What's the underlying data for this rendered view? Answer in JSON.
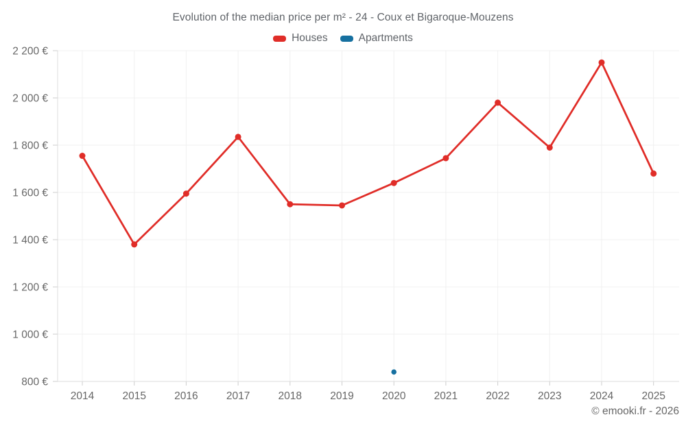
{
  "credit": "© emooki.fr - 2026",
  "legend": [
    {
      "label": "Houses",
      "color": "#e02d28"
    },
    {
      "label": "Apartments",
      "color": "#1670a0"
    }
  ],
  "chart_data": {
    "type": "line",
    "title": "Evolution of the median price per m² - 24 - Coux et Bigaroque-Mouzens",
    "categories": [
      "2014",
      "2015",
      "2016",
      "2017",
      "2018",
      "2019",
      "2020",
      "2021",
      "2022",
      "2023",
      "2024",
      "2025"
    ],
    "series": [
      {
        "name": "Houses",
        "color": "#e02d28",
        "values": [
          1755,
          1380,
          1595,
          1835,
          1550,
          1545,
          1640,
          1745,
          1980,
          1790,
          2150,
          1680
        ]
      },
      {
        "name": "Apartments",
        "color": "#1670a0",
        "values": [
          null,
          null,
          null,
          null,
          null,
          null,
          840,
          null,
          null,
          null,
          null,
          null
        ]
      }
    ],
    "ylabel": "",
    "xlabel": "",
    "ylim": [
      800,
      2200
    ],
    "yticks": [
      {
        "value": 800,
        "label": "800 €"
      },
      {
        "value": 1000,
        "label": "1 000 €"
      },
      {
        "value": 1200,
        "label": "1 200 €"
      },
      {
        "value": 1400,
        "label": "1 400 €"
      },
      {
        "value": 1600,
        "label": "1 600 €"
      },
      {
        "value": 1800,
        "label": "1 800 €"
      },
      {
        "value": 2000,
        "label": "2 000 €"
      },
      {
        "value": 2200,
        "label": "2 200 €"
      }
    ],
    "grid": true,
    "legend_position": "top",
    "colors": {
      "grid": "#f0f0f0",
      "axis": "#dcdcdc",
      "tick": "#cccccc",
      "text": "#666666"
    }
  }
}
